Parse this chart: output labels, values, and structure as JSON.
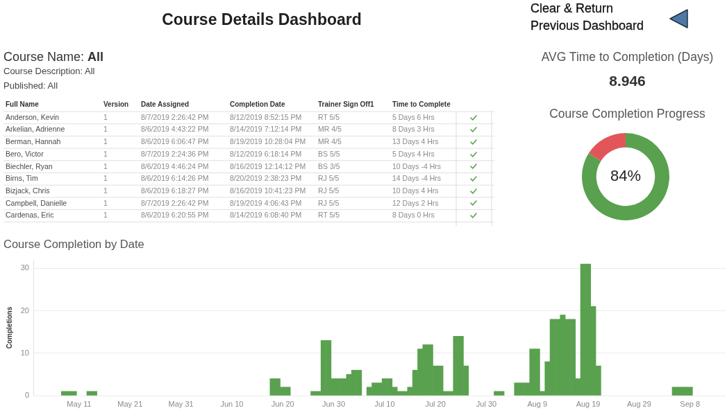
{
  "chart_data": [
    {
      "type": "other",
      "title": "Course Details Dashboard",
      "annotations": [
        "Clear & Return Previous Dashboard"
      ]
    },
    {
      "type": "other",
      "annotations": [
        "Course Name:",
        "All",
        "Course Description: All",
        "Published: All"
      ],
      "categories": [
        "Full Name",
        "Version",
        "Date Assigned",
        "Completion Date",
        "Trainer Sign Off1",
        "Time to Complete"
      ],
      "cell_labels": [
        [
          "Anderson, Kevin",
          "1",
          "8/7/2019 2:26:42 PM",
          "8/12/2019 8:52:15 PM",
          "RT 5/5",
          "5 Days 6 Hrs"
        ],
        [
          "Arkelian, Adrienne",
          "1",
          "8/6/2019 4:43:22 PM",
          "8/14/2019 7:12:14 PM",
          "MR 4/5",
          "8 Days 3 Hrs"
        ],
        [
          "Berman, Hannah",
          "1",
          "8/6/2019 6:06:47 PM",
          "8/19/2019 10:28:04 PM",
          "MR 4/5",
          "13 Days 4 Hrs"
        ],
        [
          "Bero, Victor",
          "1",
          "8/7/2019 2:24:36 PM",
          "8/12/2019 6:18:14 PM",
          "BS 5/5",
          "5 Days 4 Hrs"
        ],
        [
          "Biechler, Ryan",
          "1",
          "8/6/2019 4:46:24 PM",
          "8/16/2019 12:14:12 PM",
          "BS 3/5",
          "10 Days -4 Hrs"
        ],
        [
          "Birns, Tim",
          "1",
          "8/6/2019 6:14:26 PM",
          "8/20/2019 2:38:23 PM",
          "RJ 5/5",
          "14 Days -4 Hrs"
        ],
        [
          "Bizjack, Chris",
          "1",
          "8/6/2019 6:18:27 PM",
          "8/16/2019 10:41:23 PM",
          "RJ 5/5",
          "10 Days 4 Hrs"
        ],
        [
          "Campbell, Danielle",
          "1",
          "8/7/2019 2:26:42 PM",
          "8/19/2019 4:06:43 PM",
          "RJ 5/5",
          "12 Days 2 Hrs"
        ],
        [
          "Cardenas, Eric",
          "1",
          "8/6/2019 6:20:55 PM",
          "8/14/2019 6:08:40 PM",
          "RT 5/5",
          "8 Days 0 Hrs"
        ]
      ]
    },
    {
      "type": "other",
      "title": "AVG Time to Completion (Days)",
      "annotations": [
        "8.946"
      ]
    },
    {
      "type": "donut",
      "title": "Course Completion Progress",
      "categories": [
        null,
        null
      ],
      "values": [
        84,
        16
      ],
      "colors": [
        "#59a14f",
        "#e15759"
      ],
      "value_labels": [
        "84%",
        null
      ]
    },
    {
      "type": "bar",
      "title": "Course Completion by Date",
      "ylabel": "Completions",
      "x": [
        "--05-08",
        "--05-09",
        "--05-10",
        "--05-13",
        "--05-14",
        "--06-18",
        "--06-19",
        "--06-20",
        "--06-21",
        "--06-26",
        "--06-27",
        "--06-28",
        "--06-29",
        "--06-30",
        "--07-01",
        "--07-02",
        "--07-03",
        "--07-04",
        "--07-05",
        "--07-07",
        "--07-08",
        "--07-09",
        "--07-10",
        "--07-11",
        "--07-12",
        "--07-13",
        "--07-14",
        "--07-15",
        "--07-16",
        "--07-17",
        "--07-18",
        "--07-19",
        "--07-20",
        "--07-21",
        "--07-22",
        "--07-23",
        "--07-24",
        "--07-25",
        "--07-26",
        "--08-01",
        "--08-02",
        "--08-05",
        "--08-06",
        "--08-07",
        "--08-08",
        "--08-09",
        "--08-10",
        "--08-11",
        "--08-12",
        "--08-13",
        "--08-14",
        "--08-15",
        "--08-16",
        "--08-17",
        "--08-18",
        "--08-19",
        "--08-20",
        "--08-21",
        "--09-05",
        "--09-06",
        "--09-07",
        "--09-08"
      ],
      "values": [
        1,
        1,
        1,
        1,
        1,
        4,
        4,
        2,
        2,
        1,
        1,
        13,
        13,
        4,
        4,
        4,
        5,
        6,
        6,
        2,
        3,
        3,
        4,
        4,
        2,
        1,
        1,
        2,
        6,
        11,
        12,
        12,
        7,
        7,
        1,
        1,
        14,
        14,
        7,
        1,
        1,
        3,
        3,
        3,
        11,
        11,
        1,
        8,
        18,
        18,
        19,
        18,
        18,
        4,
        31,
        31,
        21,
        7,
        2,
        2,
        2,
        2
      ],
      "color": "#59a14f",
      "xlim": [
        "--05-02",
        "--09-15"
      ],
      "xticks": [
        {
          "value": "--05-11",
          "label": "May 11"
        },
        {
          "value": "--05-21",
          "label": "May 21"
        },
        {
          "value": "--05-31",
          "label": "May 31"
        },
        {
          "value": "--06-10",
          "label": "Jun 10"
        },
        {
          "value": "--06-20",
          "label": "Jun 20"
        },
        {
          "value": "--06-30",
          "label": "Jun 30"
        },
        {
          "value": "--07-10",
          "label": "Jul 10"
        },
        {
          "value": "--07-20",
          "label": "Jul 20"
        },
        {
          "value": "--07-30",
          "label": "Jul 30"
        },
        {
          "value": "--08-09",
          "label": "Aug 9"
        },
        {
          "value": "--08-19",
          "label": "Aug 19"
        },
        {
          "value": "--08-29",
          "label": "Aug 29"
        },
        {
          "value": "--09-08",
          "label": "Sep 8"
        }
      ],
      "ylim": [
        0,
        32
      ],
      "yticks": [
        0,
        10,
        20,
        30
      ],
      "grid": "y"
    }
  ]
}
